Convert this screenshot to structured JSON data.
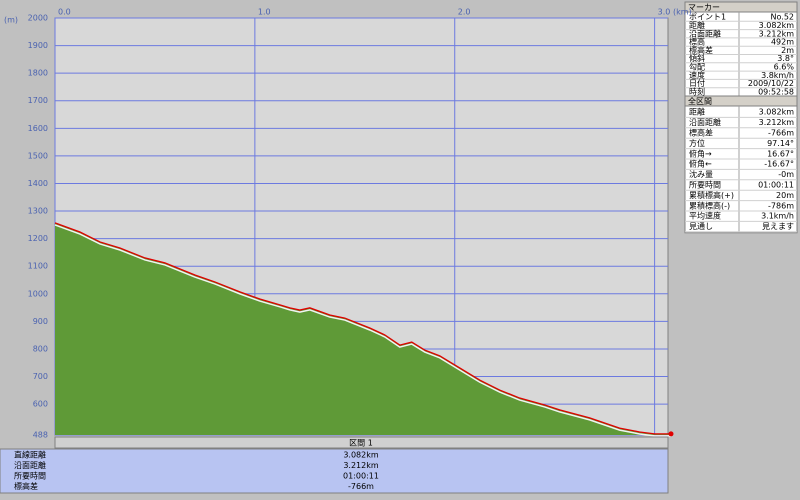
{
  "chart_data": {
    "type": "area",
    "y_unit": "(m)",
    "x_unit": "(km)",
    "x": [
      0,
      0.125,
      0.225,
      0.325,
      0.45,
      0.55,
      0.7,
      0.8,
      0.925,
      1.025,
      1.125,
      1.175,
      1.225,
      1.275,
      1.375,
      1.45,
      1.575,
      1.65,
      1.725,
      1.785,
      1.85,
      1.925,
      2.025,
      2.125,
      2.225,
      2.325,
      2.45,
      2.525,
      2.675,
      2.825,
      2.925,
      3.0,
      3.082
    ],
    "values": [
      1257,
      1224,
      1188,
      1166,
      1130,
      1112,
      1068,
      1043,
      1007,
      981,
      960,
      949,
      941,
      949,
      923,
      912,
      876,
      851,
      814,
      825,
      796,
      775,
      731,
      687,
      651,
      622,
      597,
      579,
      550,
      513,
      499,
      492,
      492
    ],
    "color": "#e00000",
    "fill": "#5f9a37",
    "grid": true,
    "xlim": [
      0,
      3.082
    ],
    "xticks": [
      {
        "value": 0,
        "label": "0.0"
      },
      {
        "value": 1,
        "label": "1.0"
      },
      {
        "value": 2,
        "label": "2.0"
      },
      {
        "value": 3,
        "label": "3.0"
      }
    ],
    "ylim": [
      488,
      2000
    ],
    "yticks": [
      2000,
      1900,
      1800,
      1700,
      1600,
      1500,
      1400,
      1300,
      1200,
      1100,
      1000,
      900,
      800,
      700,
      600,
      488
    ]
  },
  "section_bar": "区間 1",
  "bottom_panel": {
    "rows": [
      [
        "直線距離",
        "3.082km"
      ],
      [
        "沿面距離",
        "3.212km"
      ],
      [
        "所要時間",
        "01:00:11"
      ],
      [
        "標高差",
        "-766m"
      ]
    ]
  },
  "marker_panel": {
    "title": "マーカー",
    "rows": [
      [
        "ポイント1",
        "No.52"
      ],
      [
        "距離",
        "3.082km"
      ],
      [
        "沿面距離",
        "3.212km"
      ],
      [
        "標高",
        "492m"
      ],
      [
        "標高差",
        "2m"
      ],
      [
        "傾斜",
        "3.8°"
      ],
      [
        "勾配",
        "6.6%"
      ],
      [
        "速度",
        "3.8km/h"
      ],
      [
        "日付",
        "2009/10/22"
      ],
      [
        "時刻",
        "09:52:58"
      ]
    ]
  },
  "section_panel": {
    "title": "全区間",
    "rows": [
      [
        "距離",
        "3.082km"
      ],
      [
        "沿面距離",
        "3.212km"
      ],
      [
        "標高差",
        "-766m"
      ],
      [
        "方位",
        "97.14°"
      ],
      [
        "俯角→",
        "16.67°"
      ],
      [
        "俯角←",
        "-16.67°"
      ],
      [
        "沈み量",
        "-0m"
      ],
      [
        "所要時間",
        "01:00:11"
      ],
      [
        "累積標高(+)",
        "20m"
      ],
      [
        "累積標高(-)",
        "-786m"
      ],
      [
        "平均速度",
        "3.1km/h"
      ],
      [
        "見通し",
        "見えます"
      ]
    ]
  }
}
